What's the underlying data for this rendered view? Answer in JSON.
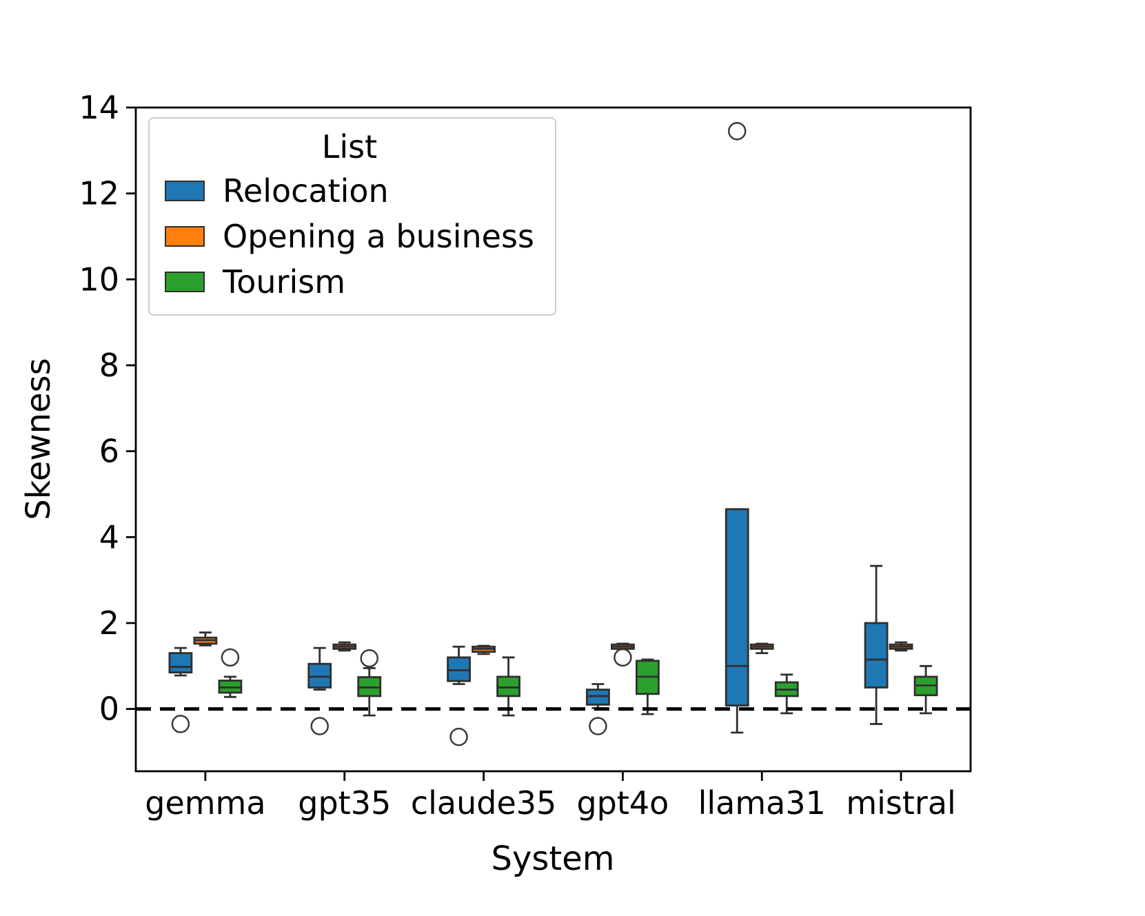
{
  "chart_data": {
    "type": "boxplot",
    "title": "",
    "xlabel": "System",
    "ylabel": "Skewness",
    "categories": [
      "gemma",
      "gpt35",
      "claude35",
      "gpt4o",
      "llama31",
      "mistral"
    ],
    "ylim": [
      -1.45,
      14
    ],
    "yticks": [
      0,
      2,
      4,
      6,
      8,
      10,
      12,
      14
    ],
    "grid": false,
    "legend": {
      "title": "List",
      "position": "upper left"
    },
    "reference_line": {
      "y": 0,
      "style": "dashed",
      "color": "#000000"
    },
    "series": [
      {
        "name": "Relocation",
        "color": "#1F77B4",
        "boxes": [
          {
            "whislo": 0.78,
            "q1": 0.85,
            "med": 0.98,
            "q3": 1.3,
            "whishi": 1.42,
            "fliers": [
              -0.35
            ]
          },
          {
            "whislo": 0.45,
            "q1": 0.5,
            "med": 0.75,
            "q3": 1.05,
            "whishi": 1.42,
            "fliers": [
              -0.4
            ]
          },
          {
            "whislo": 0.58,
            "q1": 0.65,
            "med": 0.9,
            "q3": 1.2,
            "whishi": 1.45,
            "fliers": [
              -0.65
            ]
          },
          {
            "whislo": 0.02,
            "q1": 0.1,
            "med": 0.3,
            "q3": 0.45,
            "whishi": 0.58,
            "fliers": [
              -0.4
            ]
          },
          {
            "whislo": -0.55,
            "q1": 0.08,
            "med": 1.0,
            "q3": 4.65,
            "whishi": 4.65,
            "fliers": [
              13.45
            ]
          },
          {
            "whislo": -0.35,
            "q1": 0.5,
            "med": 1.15,
            "q3": 2.0,
            "whishi": 3.33,
            "fliers": []
          }
        ]
      },
      {
        "name": "Opening a business",
        "color": "#FF7F0E",
        "boxes": [
          {
            "whislo": 1.48,
            "q1": 1.52,
            "med": 1.6,
            "q3": 1.66,
            "whishi": 1.78,
            "fliers": []
          },
          {
            "whislo": 1.36,
            "q1": 1.4,
            "med": 1.45,
            "q3": 1.5,
            "whishi": 1.55,
            "fliers": []
          },
          {
            "whislo": 1.28,
            "q1": 1.33,
            "med": 1.4,
            "q3": 1.45,
            "whishi": 1.47,
            "fliers": []
          },
          {
            "whislo": 1.35,
            "q1": 1.4,
            "med": 1.45,
            "q3": 1.5,
            "whishi": 1.52,
            "fliers": [
              1.2
            ]
          },
          {
            "whislo": 1.3,
            "q1": 1.4,
            "med": 1.45,
            "q3": 1.5,
            "whishi": 1.52,
            "fliers": []
          },
          {
            "whislo": 1.36,
            "q1": 1.4,
            "med": 1.45,
            "q3": 1.5,
            "whishi": 1.55,
            "fliers": []
          }
        ]
      },
      {
        "name": "Tourism",
        "color": "#2CA02C",
        "boxes": [
          {
            "whislo": 0.28,
            "q1": 0.38,
            "med": 0.5,
            "q3": 0.66,
            "whishi": 0.75,
            "fliers": [
              1.2
            ]
          },
          {
            "whislo": -0.15,
            "q1": 0.3,
            "med": 0.5,
            "q3": 0.74,
            "whishi": 0.95,
            "fliers": [
              1.18
            ]
          },
          {
            "whislo": -0.15,
            "q1": 0.3,
            "med": 0.5,
            "q3": 0.75,
            "whishi": 1.2,
            "fliers": []
          },
          {
            "whislo": -0.12,
            "q1": 0.35,
            "med": 0.75,
            "q3": 1.12,
            "whishi": 1.15,
            "fliers": []
          },
          {
            "whislo": -0.1,
            "q1": 0.3,
            "med": 0.45,
            "q3": 0.62,
            "whishi": 0.8,
            "fliers": []
          },
          {
            "whislo": -0.1,
            "q1": 0.32,
            "med": 0.55,
            "q3": 0.75,
            "whishi": 1.0,
            "fliers": []
          }
        ]
      }
    ]
  }
}
